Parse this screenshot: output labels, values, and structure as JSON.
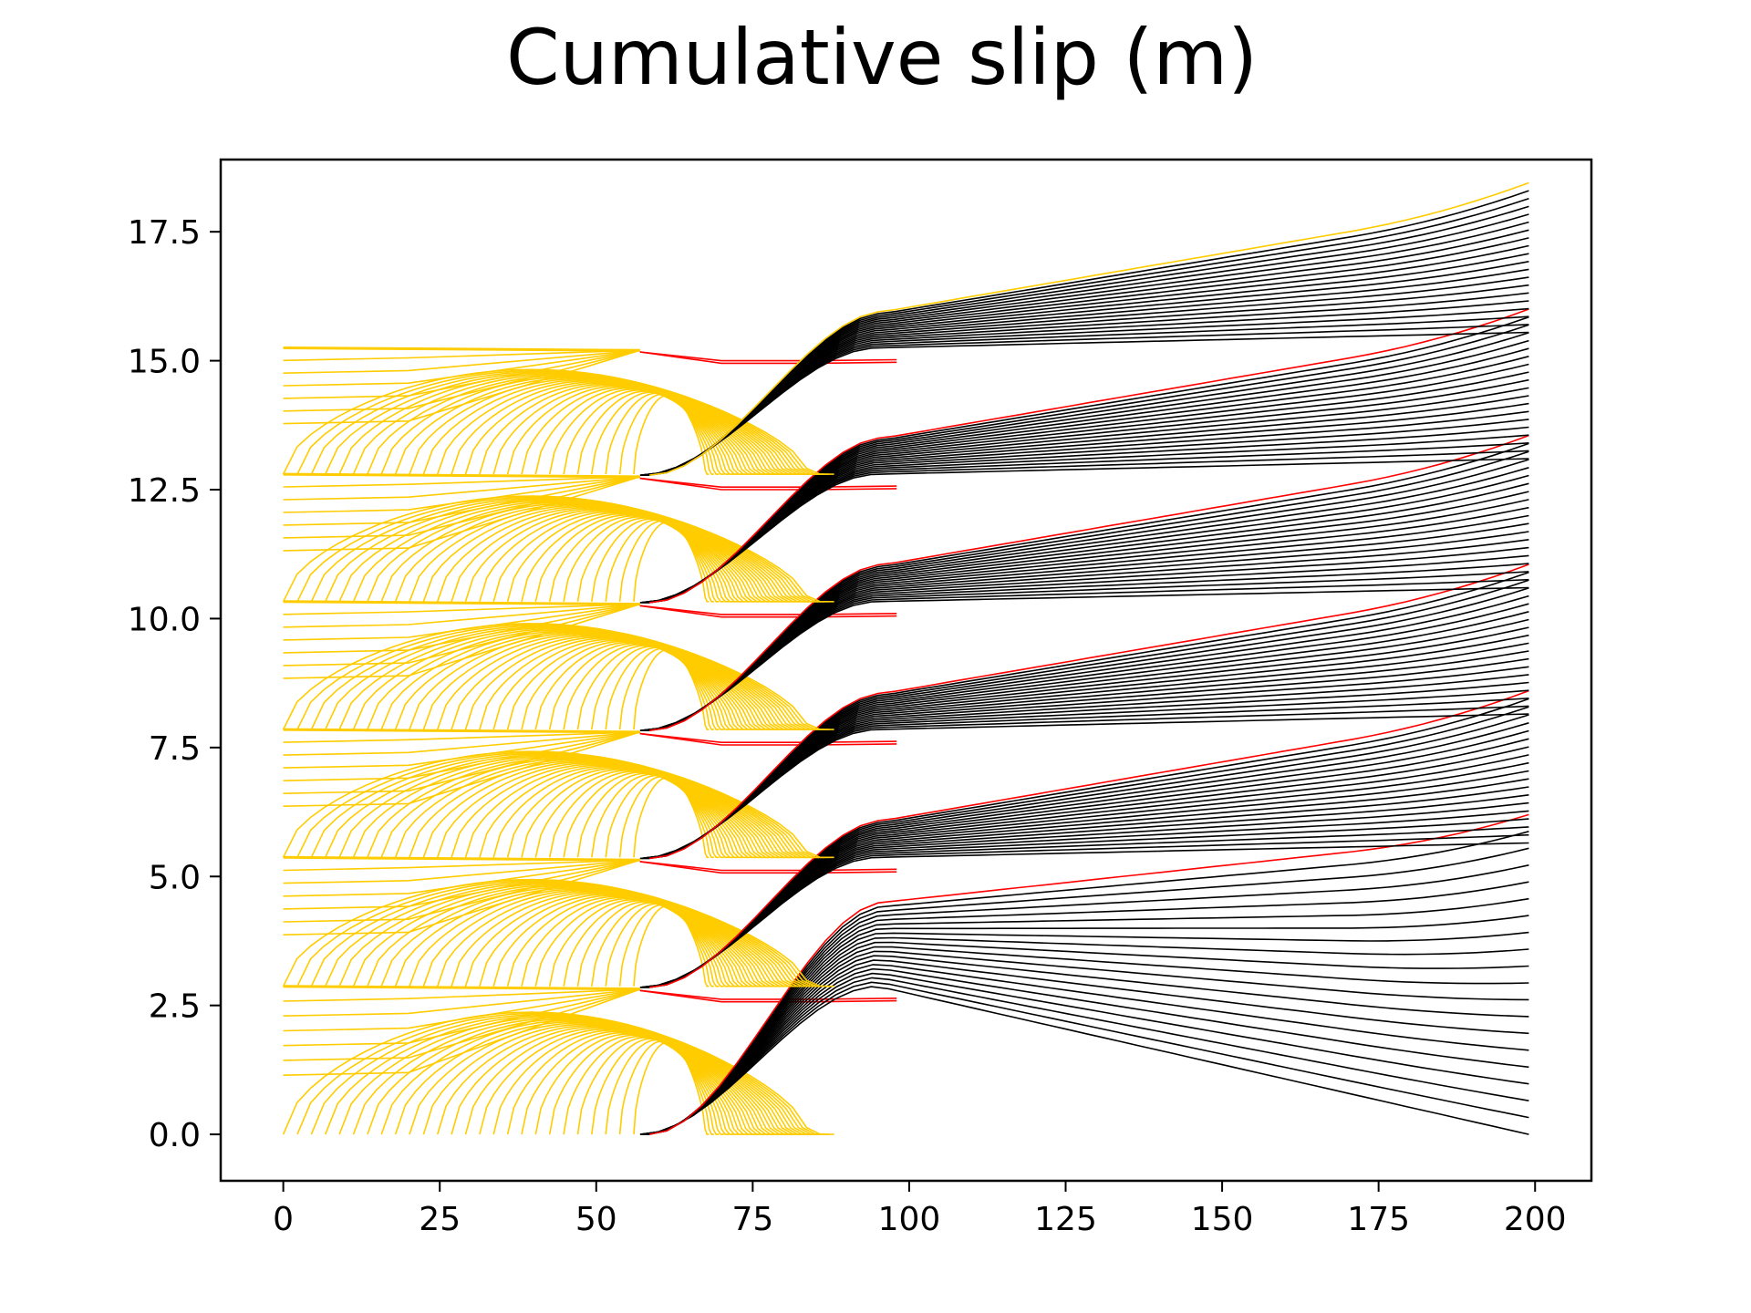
{
  "chart_data": {
    "type": "line",
    "title": "Cumulative slip (m)",
    "xlabel": "",
    "ylabel": "",
    "xlim": [
      -10,
      209
    ],
    "ylim": [
      -0.9,
      18.9
    ],
    "xticks": [
      0,
      25,
      50,
      75,
      100,
      125,
      150,
      175,
      200
    ],
    "yticks": [
      0.0,
      2.5,
      5.0,
      7.5,
      10.0,
      12.5,
      15.0,
      17.5
    ],
    "xtick_labels": [
      "0",
      "25",
      "50",
      "75",
      "100",
      "125",
      "150",
      "175",
      "200"
    ],
    "ytick_labels": [
      "0.0",
      "2.5",
      "5.0",
      "7.5",
      "10.0",
      "12.5",
      "15.0",
      "17.5"
    ],
    "grid": false,
    "legend": "none",
    "series": [
      {
        "category": "coseismic",
        "color": "#FFCC00",
        "description": "interseismic/early slip contours, depth 0-58 km, arching lobes per cycle"
      },
      {
        "category": "postseismic",
        "color": "#000000",
        "description": "slip contours rising from x≈57 to 199"
      },
      {
        "category": "earthquake",
        "color": "#FF0000",
        "description": "coseismic rupture contours"
      }
    ],
    "cycles": [
      {
        "base": 0.0,
        "top": 2.87,
        "end_top": 5.85,
        "end_bottom": 0.0
      },
      {
        "base": 2.87,
        "top": 5.37,
        "end_top": 8.25,
        "end_bottom": 5.65
      },
      {
        "base": 5.37,
        "top": 7.85,
        "end_top": 10.7,
        "end_bottom": 8.15
      },
      {
        "base": 7.85,
        "top": 10.33,
        "end_top": 13.2,
        "end_bottom": 10.6
      },
      {
        "base": 10.33,
        "top": 12.8,
        "end_top": 15.65,
        "end_bottom": 13.1
      },
      {
        "base": 12.8,
        "top": 15.25,
        "end_top": 18.1,
        "end_bottom": 15.55
      }
    ]
  }
}
